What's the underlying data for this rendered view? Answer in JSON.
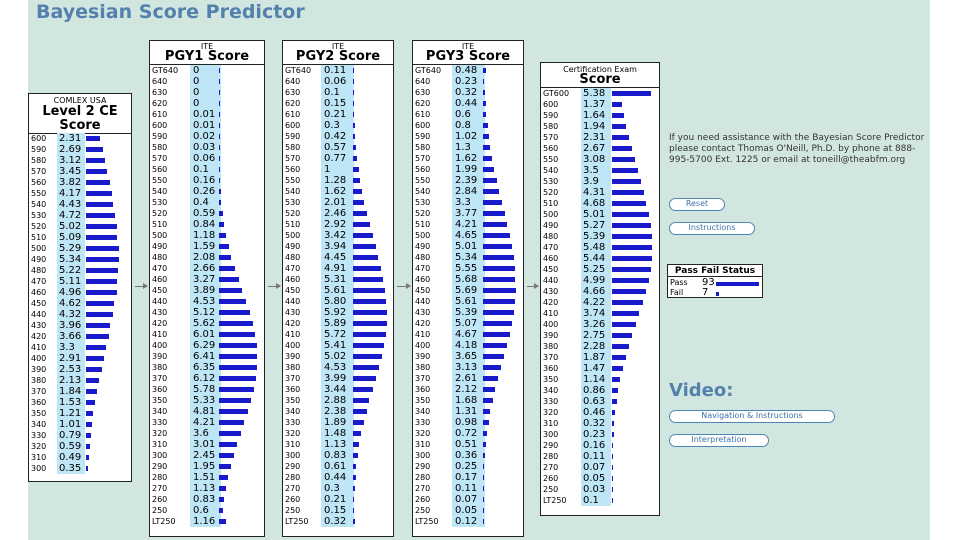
{
  "title": "Bayesian Score Predictor",
  "colors": {
    "bar": "#1a1acd",
    "highlight": "#bfe6f6",
    "title": "#5480ad",
    "background": "#d2e6e0"
  },
  "panels": {
    "comlex": {
      "line1": "COMLEX USA",
      "line2": "Level 2 CE",
      "line3": "Score",
      "max": 6.5,
      "rows": [
        [
          "600",
          "2.31"
        ],
        [
          "590",
          "2.69"
        ],
        [
          "580",
          "3.12"
        ],
        [
          "570",
          "3.45"
        ],
        [
          "560",
          "3.82"
        ],
        [
          "550",
          "4.17"
        ],
        [
          "540",
          "4.43"
        ],
        [
          "530",
          "4.72"
        ],
        [
          "520",
          "5.02"
        ],
        [
          "510",
          "5.09"
        ],
        [
          "500",
          "5.29"
        ],
        [
          "490",
          "5.34"
        ],
        [
          "480",
          "5.22"
        ],
        [
          "470",
          "5.11"
        ],
        [
          "460",
          "4.96"
        ],
        [
          "450",
          "4.62"
        ],
        [
          "440",
          "4.32"
        ],
        [
          "430",
          "3.96"
        ],
        [
          "420",
          "3.66"
        ],
        [
          "410",
          "3.3"
        ],
        [
          "400",
          "2.91"
        ],
        [
          "390",
          "2.53"
        ],
        [
          "380",
          "2.13"
        ],
        [
          "370",
          "1.84"
        ],
        [
          "360",
          "1.53"
        ],
        [
          "350",
          "1.21"
        ],
        [
          "340",
          "1.01"
        ],
        [
          "330",
          "0.79"
        ],
        [
          "320",
          "0.59"
        ],
        [
          "310",
          "0.49"
        ],
        [
          "300",
          "0.35"
        ]
      ]
    },
    "pgy1": {
      "line1": "ITE",
      "line2": "PGY1 Score",
      "max": 7,
      "rows": [
        [
          "GT640",
          "0"
        ],
        [
          "640",
          "0"
        ],
        [
          "630",
          "0"
        ],
        [
          "620",
          "0"
        ],
        [
          "610",
          "0.01"
        ],
        [
          "600",
          "0.01"
        ],
        [
          "590",
          "0.02"
        ],
        [
          "580",
          "0.03"
        ],
        [
          "570",
          "0.06"
        ],
        [
          "560",
          "0.1"
        ],
        [
          "550",
          "0.16"
        ],
        [
          "540",
          "0.26"
        ],
        [
          "530",
          "0.4"
        ],
        [
          "520",
          "0.59"
        ],
        [
          "510",
          "0.84"
        ],
        [
          "500",
          "1.18"
        ],
        [
          "490",
          "1.59"
        ],
        [
          "480",
          "2.08"
        ],
        [
          "470",
          "2.66"
        ],
        [
          "460",
          "3.27"
        ],
        [
          "450",
          "3.89"
        ],
        [
          "440",
          "4.53"
        ],
        [
          "430",
          "5.12"
        ],
        [
          "420",
          "5.62"
        ],
        [
          "410",
          "6.01"
        ],
        [
          "400",
          "6.29"
        ],
        [
          "390",
          "6.41"
        ],
        [
          "380",
          "6.35"
        ],
        [
          "370",
          "6.12"
        ],
        [
          "360",
          "5.78"
        ],
        [
          "350",
          "5.33"
        ],
        [
          "340",
          "4.81"
        ],
        [
          "330",
          "4.21"
        ],
        [
          "320",
          "3.6"
        ],
        [
          "310",
          "3.01"
        ],
        [
          "300",
          "2.45"
        ],
        [
          "290",
          "1.95"
        ],
        [
          "280",
          "1.51"
        ],
        [
          "270",
          "1.13"
        ],
        [
          "260",
          "0.83"
        ],
        [
          "250",
          "0.6"
        ],
        [
          "LT250",
          "1.16"
        ]
      ]
    },
    "pgy2": {
      "line1": "ITE",
      "line2": "PGY2 Score",
      "max": 7,
      "rows": [
        [
          "GT640",
          "0.11"
        ],
        [
          "640",
          "0.06"
        ],
        [
          "630",
          "0.1"
        ],
        [
          "620",
          "0.15"
        ],
        [
          "610",
          "0.21"
        ],
        [
          "600",
          "0.3"
        ],
        [
          "590",
          "0.42"
        ],
        [
          "580",
          "0.57"
        ],
        [
          "570",
          "0.77"
        ],
        [
          "560",
          "1"
        ],
        [
          "550",
          "1.28"
        ],
        [
          "540",
          "1.62"
        ],
        [
          "530",
          "2.01"
        ],
        [
          "520",
          "2.46"
        ],
        [
          "510",
          "2.92"
        ],
        [
          "500",
          "3.42"
        ],
        [
          "490",
          "3.94"
        ],
        [
          "480",
          "4.45"
        ],
        [
          "470",
          "4.91"
        ],
        [
          "460",
          "5.31"
        ],
        [
          "450",
          "5.61"
        ],
        [
          "440",
          "5.80"
        ],
        [
          "430",
          "5.92"
        ],
        [
          "420",
          "5.89"
        ],
        [
          "410",
          "5.72"
        ],
        [
          "400",
          "5.41"
        ],
        [
          "390",
          "5.02"
        ],
        [
          "380",
          "4.53"
        ],
        [
          "370",
          "3.99"
        ],
        [
          "360",
          "3.44"
        ],
        [
          "350",
          "2.88"
        ],
        [
          "340",
          "2.38"
        ],
        [
          "330",
          "1.89"
        ],
        [
          "320",
          "1.48"
        ],
        [
          "310",
          "1.13"
        ],
        [
          "300",
          "0.83"
        ],
        [
          "290",
          "0.61"
        ],
        [
          "280",
          "0.44"
        ],
        [
          "270",
          "0.3"
        ],
        [
          "260",
          "0.21"
        ],
        [
          "250",
          "0.15"
        ],
        [
          "LT250",
          "0.32"
        ]
      ]
    },
    "pgy3": {
      "line1": "ITE",
      "line2": "PGY3 Score",
      "max": 7,
      "rows": [
        [
          "GT640",
          "0.48"
        ],
        [
          "640",
          "0.23"
        ],
        [
          "630",
          "0.32"
        ],
        [
          "620",
          "0.44"
        ],
        [
          "610",
          "0.6"
        ],
        [
          "600",
          "0.8"
        ],
        [
          "590",
          "1.02"
        ],
        [
          "580",
          "1.3"
        ],
        [
          "570",
          "1.62"
        ],
        [
          "560",
          "1.99"
        ],
        [
          "550",
          "2.39"
        ],
        [
          "540",
          "2.84"
        ],
        [
          "530",
          "3.3"
        ],
        [
          "520",
          "3.77"
        ],
        [
          "510",
          "4.21"
        ],
        [
          "500",
          "4.65"
        ],
        [
          "490",
          "5.01"
        ],
        [
          "480",
          "5.34"
        ],
        [
          "470",
          "5.55"
        ],
        [
          "460",
          "5.68"
        ],
        [
          "450",
          "5.69"
        ],
        [
          "440",
          "5.61"
        ],
        [
          "430",
          "5.39"
        ],
        [
          "420",
          "5.07"
        ],
        [
          "410",
          "4.67"
        ],
        [
          "400",
          "4.18"
        ],
        [
          "390",
          "3.65"
        ],
        [
          "380",
          "3.13"
        ],
        [
          "370",
          "2.61"
        ],
        [
          "360",
          "2.12"
        ],
        [
          "350",
          "1.68"
        ],
        [
          "340",
          "1.31"
        ],
        [
          "330",
          "0.98"
        ],
        [
          "320",
          "0.72"
        ],
        [
          "310",
          "0.51"
        ],
        [
          "300",
          "0.36"
        ],
        [
          "290",
          "0.25"
        ],
        [
          "280",
          "0.17"
        ],
        [
          "270",
          "0.11"
        ],
        [
          "260",
          "0.07"
        ],
        [
          "250",
          "0.05"
        ],
        [
          "LT250",
          "0.12"
        ]
      ]
    },
    "cert": {
      "line1": "Certification Exam",
      "line2": "Score",
      "max": 6,
      "rows": [
        [
          "GT600",
          "5.38"
        ],
        [
          "600",
          "1.37"
        ],
        [
          "590",
          "1.64"
        ],
        [
          "580",
          "1.94"
        ],
        [
          "570",
          "2.31"
        ],
        [
          "560",
          "2.67"
        ],
        [
          "550",
          "3.08"
        ],
        [
          "540",
          "3.5"
        ],
        [
          "530",
          "3.9"
        ],
        [
          "520",
          "4.31"
        ],
        [
          "510",
          "4.68"
        ],
        [
          "500",
          "5.01"
        ],
        [
          "490",
          "5.27"
        ],
        [
          "480",
          "5.39"
        ],
        [
          "470",
          "5.48"
        ],
        [
          "460",
          "5.44"
        ],
        [
          "450",
          "5.25"
        ],
        [
          "440",
          "4.99"
        ],
        [
          "430",
          "4.66"
        ],
        [
          "420",
          "4.22"
        ],
        [
          "410",
          "3.74"
        ],
        [
          "400",
          "3.26"
        ],
        [
          "390",
          "2.75"
        ],
        [
          "380",
          "2.28"
        ],
        [
          "370",
          "1.87"
        ],
        [
          "360",
          "1.47"
        ],
        [
          "350",
          "1.14"
        ],
        [
          "340",
          "0.86"
        ],
        [
          "330",
          "0.63"
        ],
        [
          "320",
          "0.46"
        ],
        [
          "310",
          "0.32"
        ],
        [
          "300",
          "0.23"
        ],
        [
          "290",
          "0.16"
        ],
        [
          "280",
          "0.11"
        ],
        [
          "270",
          "0.07"
        ],
        [
          "260",
          "0.05"
        ],
        [
          "250",
          "0.03"
        ],
        [
          "LT250",
          "0.1"
        ]
      ]
    }
  },
  "info": "If you need assistance with the Bayesian Score Predictor please contact Thomas O'Neill, Ph.D. by phone at 888-995-5700 Ext. 1225 or email at toneill@theabfm.org",
  "buttons": {
    "reset": "Reset",
    "instructions": "Instructions",
    "navigation": "Navigation & Instructions",
    "interpretation": "Interpretation"
  },
  "video_heading": "Video:",
  "pass_fail": {
    "title": "Pass Fail Status",
    "pass_label": "Pass",
    "pass_value": "93",
    "fail_label": "Fail",
    "fail_value": "7",
    "pass_fraction": 0.93,
    "fail_fraction": 0.07
  }
}
